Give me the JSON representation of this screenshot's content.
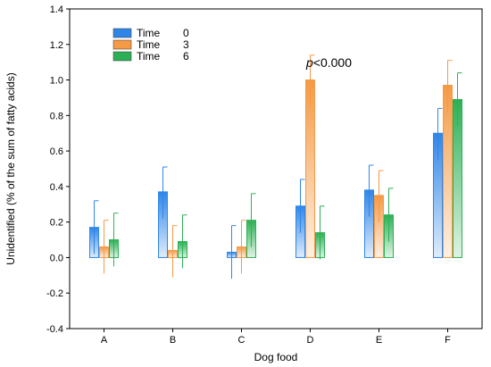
{
  "chart_data": {
    "type": "bar",
    "xlabel": "Dog food",
    "ylabel": "Unidentified (% of the sum of fatty acids)",
    "ylim": [
      -0.4,
      1.4
    ],
    "yticks": [
      "-0.4",
      "-0.2",
      "0.0",
      "0.2",
      "0.4",
      "0.6",
      "0.8",
      "1.0",
      "1.2",
      "1.4"
    ],
    "categories": [
      "A",
      "B",
      "C",
      "D",
      "E",
      "F"
    ],
    "grid": false,
    "legend_position": "top-left",
    "series": [
      {
        "name": "Time",
        "legend_value": "0",
        "color": "#2f86e8",
        "values": [
          0.17,
          0.37,
          0.03,
          0.29,
          0.38,
          0.7
        ],
        "err_upper": [
          0.32,
          0.51,
          0.18,
          0.44,
          0.52,
          0.84
        ],
        "err_lower": [
          0.02,
          0.22,
          -0.12,
          0.14,
          0.23,
          0.55
        ]
      },
      {
        "name": "Time",
        "legend_value": "3",
        "color": "#f59a45",
        "values": [
          0.06,
          0.04,
          0.06,
          1.0,
          0.35,
          0.97
        ],
        "err_upper": [
          0.21,
          0.18,
          0.21,
          1.14,
          0.49,
          1.11
        ],
        "err_lower": [
          -0.09,
          -0.11,
          -0.09,
          0.85,
          0.2,
          0.82
        ]
      },
      {
        "name": "Time",
        "legend_value": "6",
        "color": "#2db055",
        "values": [
          0.1,
          0.09,
          0.21,
          0.14,
          0.24,
          0.89
        ],
        "err_upper": [
          0.25,
          0.24,
          0.36,
          0.29,
          0.39,
          1.04
        ],
        "err_lower": [
          -0.05,
          -0.06,
          0.06,
          -0.01,
          0.09,
          0.74
        ]
      }
    ],
    "annotation": {
      "text_italic": "p",
      "text_rest": "<0.000",
      "category": "D"
    }
  }
}
